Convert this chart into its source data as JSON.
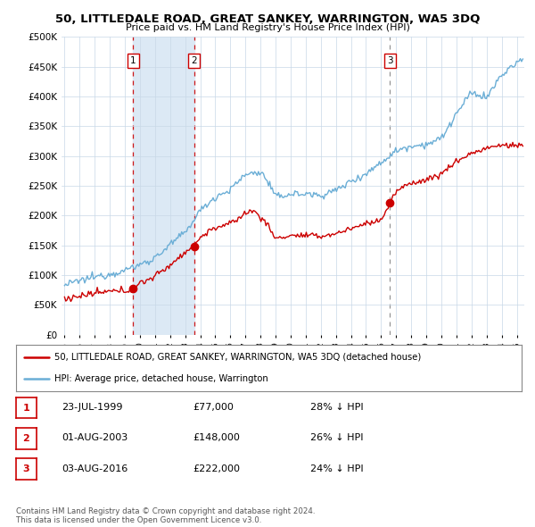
{
  "title": "50, LITTLEDALE ROAD, GREAT SANKEY, WARRINGTON, WA5 3DQ",
  "subtitle": "Price paid vs. HM Land Registry's House Price Index (HPI)",
  "ylabel_ticks": [
    "£0",
    "£50K",
    "£100K",
    "£150K",
    "£200K",
    "£250K",
    "£300K",
    "£350K",
    "£400K",
    "£450K",
    "£500K"
  ],
  "ytick_values": [
    0,
    50000,
    100000,
    150000,
    200000,
    250000,
    300000,
    350000,
    400000,
    450000,
    500000
  ],
  "ylim": [
    0,
    500000
  ],
  "xlim_start": 1994.8,
  "xlim_end": 2025.5,
  "hpi_color": "#6baed6",
  "price_color": "#cc0000",
  "vline1_color": "#cc0000",
  "vline2_color": "#aaaaaa",
  "shade_color": "#dce9f5",
  "sale_points": [
    {
      "year": 1999.56,
      "value": 77000,
      "label": "1",
      "vline": "red"
    },
    {
      "year": 2003.59,
      "value": 148000,
      "label": "2",
      "vline": "red"
    },
    {
      "year": 2016.59,
      "value": 222000,
      "label": "3",
      "vline": "gray"
    }
  ],
  "legend_entries": [
    "50, LITTLEDALE ROAD, GREAT SANKEY, WARRINGTON, WA5 3DQ (detached house)",
    "HPI: Average price, detached house, Warrington"
  ],
  "table_rows": [
    {
      "num": "1",
      "date": "23-JUL-1999",
      "price": "£77,000",
      "pct": "28% ↓ HPI"
    },
    {
      "num": "2",
      "date": "01-AUG-2003",
      "price": "£148,000",
      "pct": "26% ↓ HPI"
    },
    {
      "num": "3",
      "date": "03-AUG-2016",
      "price": "£222,000",
      "pct": "24% ↓ HPI"
    }
  ],
  "footnote": "Contains HM Land Registry data © Crown copyright and database right 2024.\nThis data is licensed under the Open Government Licence v3.0.",
  "background_color": "#ffffff",
  "grid_color": "#c8d8e8"
}
